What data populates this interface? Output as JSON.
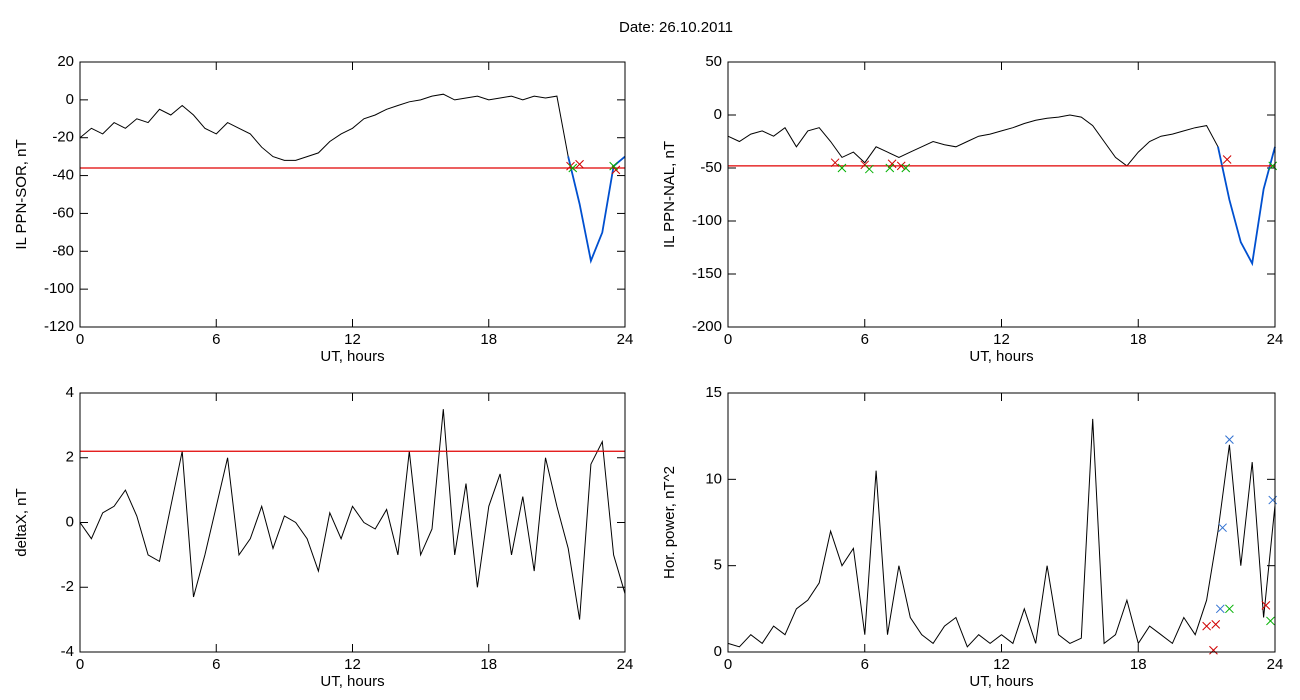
{
  "header": {
    "title": "Date:  26.10.2011"
  },
  "chart_data": [
    {
      "type": "line",
      "xlabel": "UT, hours",
      "ylabel": "IL PPN-SOR, nT",
      "x": [
        0,
        0.5,
        1,
        1.5,
        2,
        2.5,
        3,
        3.5,
        4,
        4.5,
        5,
        5.5,
        6,
        6.5,
        7,
        7.5,
        8,
        8.5,
        9,
        9.5,
        10,
        10.5,
        11,
        11.5,
        12,
        12.5,
        13,
        13.5,
        14,
        14.5,
        15,
        15.5,
        16,
        16.5,
        17,
        17.5,
        18,
        18.5,
        19,
        19.5,
        20,
        20.5,
        21,
        21.5,
        22,
        22.5,
        23,
        23.5,
        24
      ],
      "series": [
        {
          "color": "#000000",
          "values": [
            -20,
            -15,
            -18,
            -12,
            -15,
            -10,
            -12,
            -5,
            -8,
            -3,
            -8,
            -15,
            -18,
            -12,
            -15,
            -18,
            -25,
            -30,
            -32,
            -32,
            -30,
            -28,
            -22,
            -18,
            -15,
            -10,
            -8,
            -5,
            -3,
            -1,
            0,
            2,
            3,
            0,
            1,
            2,
            0,
            1,
            2,
            0,
            2,
            1,
            2,
            -30,
            -55,
            -85,
            -70,
            -35,
            -30
          ]
        },
        {
          "color": "#0050d0",
          "values": [
            null,
            null,
            null,
            null,
            null,
            null,
            null,
            null,
            null,
            null,
            null,
            null,
            null,
            null,
            null,
            null,
            null,
            null,
            null,
            null,
            null,
            null,
            null,
            null,
            null,
            null,
            null,
            null,
            null,
            null,
            null,
            null,
            null,
            null,
            null,
            null,
            null,
            null,
            null,
            null,
            null,
            null,
            null,
            -30,
            -55,
            -85,
            -70,
            -35,
            -30
          ]
        }
      ],
      "markers": [
        {
          "color": "#d00000",
          "x": [
            21.6,
            22,
            23.6
          ],
          "values": [
            -35,
            -34,
            -37
          ]
        },
        {
          "color": "#00b000",
          "x": [
            21.7,
            23.5
          ],
          "values": [
            -36,
            -35
          ]
        }
      ],
      "threshold": -36,
      "threshold_color": "#e00000",
      "xlim": [
        0,
        24
      ],
      "xticks": [
        0,
        6,
        12,
        18,
        24
      ],
      "ylim": [
        -120,
        20
      ],
      "yticks": [
        -120,
        -100,
        -80,
        -60,
        -40,
        -20,
        0,
        20
      ]
    },
    {
      "type": "line",
      "xlabel": "UT, hours",
      "ylabel": "IL PPN-NAL, nT",
      "x": [
        0,
        0.5,
        1,
        1.5,
        2,
        2.5,
        3,
        3.5,
        4,
        4.5,
        5,
        5.5,
        6,
        6.5,
        7,
        7.5,
        8,
        8.5,
        9,
        9.5,
        10,
        10.5,
        11,
        11.5,
        12,
        12.5,
        13,
        13.5,
        14,
        14.5,
        15,
        15.5,
        16,
        16.5,
        17,
        17.5,
        18,
        18.5,
        19,
        19.5,
        20,
        20.5,
        21,
        21.5,
        22,
        22.5,
        23,
        23.5,
        24
      ],
      "series": [
        {
          "color": "#000000",
          "values": [
            -20,
            -25,
            -18,
            -15,
            -20,
            -12,
            -30,
            -15,
            -12,
            -25,
            -40,
            -35,
            -45,
            -30,
            -35,
            -40,
            -35,
            -30,
            -25,
            -28,
            -30,
            -25,
            -20,
            -18,
            -15,
            -12,
            -8,
            -5,
            -3,
            -2,
            0,
            -2,
            -10,
            -25,
            -40,
            -48,
            -35,
            -25,
            -20,
            -18,
            -15,
            -12,
            -10,
            -30,
            -80,
            -120,
            -140,
            -70,
            -30
          ]
        },
        {
          "color": "#0050d0",
          "values": [
            null,
            null,
            null,
            null,
            null,
            null,
            null,
            null,
            null,
            null,
            null,
            null,
            null,
            null,
            null,
            null,
            null,
            null,
            null,
            null,
            null,
            null,
            null,
            null,
            null,
            null,
            null,
            null,
            null,
            null,
            null,
            null,
            null,
            null,
            null,
            null,
            null,
            null,
            null,
            null,
            null,
            null,
            null,
            -30,
            -80,
            -120,
            -140,
            -70,
            -30
          ]
        }
      ],
      "markers": [
        {
          "color": "#d00000",
          "x": [
            4.7,
            6,
            7.2,
            7.6,
            21.9
          ],
          "values": [
            -45,
            -47,
            -46,
            -48,
            -42
          ]
        },
        {
          "color": "#00b000",
          "x": [
            5,
            6.2,
            7.1,
            7.8,
            23.9
          ],
          "values": [
            -50,
            -51,
            -50,
            -50,
            -48
          ]
        }
      ],
      "threshold": -48,
      "threshold_color": "#e00000",
      "xlim": [
        0,
        24
      ],
      "xticks": [
        0,
        6,
        12,
        18,
        24
      ],
      "ylim": [
        -200,
        50
      ],
      "yticks": [
        -200,
        -150,
        -100,
        -50,
        0,
        50
      ]
    },
    {
      "type": "line",
      "xlabel": "UT, hours",
      "ylabel": "deltaX, nT",
      "x": [
        0,
        0.5,
        1,
        1.5,
        2,
        2.5,
        3,
        3.5,
        4,
        4.5,
        5,
        5.5,
        6,
        6.5,
        7,
        7.5,
        8,
        8.5,
        9,
        9.5,
        10,
        10.5,
        11,
        11.5,
        12,
        12.5,
        13,
        13.5,
        14,
        14.5,
        15,
        15.5,
        16,
        16.5,
        17,
        17.5,
        18,
        18.5,
        19,
        19.5,
        20,
        20.5,
        21,
        21.5,
        22,
        22.5,
        23,
        23.5,
        24
      ],
      "series": [
        {
          "color": "#000000",
          "values": [
            0,
            -0.5,
            0.3,
            0.5,
            1,
            0.2,
            -1,
            -1.2,
            0.5,
            2.2,
            -2.3,
            -1,
            0.5,
            2,
            -1,
            -0.5,
            0.5,
            -0.8,
            0.2,
            0,
            -0.5,
            -1.5,
            0.3,
            -0.5,
            0.5,
            0,
            -0.2,
            0.4,
            -1,
            2.2,
            -1,
            -0.2,
            3.5,
            -1,
            1.2,
            -2,
            0.5,
            1.5,
            -1,
            0.8,
            -1.5,
            2,
            0.5,
            -0.8,
            -3,
            1.8,
            2.5,
            -1,
            -2.2
          ]
        }
      ],
      "markers": [],
      "threshold": 2.2,
      "threshold_color": "#e00000",
      "xlim": [
        0,
        24
      ],
      "xticks": [
        0,
        6,
        12,
        18,
        24
      ],
      "ylim": [
        -4,
        4
      ],
      "yticks": [
        -4,
        -2,
        0,
        2,
        4
      ]
    },
    {
      "type": "line",
      "xlabel": "UT, hours",
      "ylabel": "Hor. power, nT^2",
      "x": [
        0,
        0.5,
        1,
        1.5,
        2,
        2.5,
        3,
        3.5,
        4,
        4.5,
        5,
        5.5,
        6,
        6.5,
        7,
        7.5,
        8,
        8.5,
        9,
        9.5,
        10,
        10.5,
        11,
        11.5,
        12,
        12.5,
        13,
        13.5,
        14,
        14.5,
        15,
        15.5,
        16,
        16.5,
        17,
        17.5,
        18,
        18.5,
        19,
        19.5,
        20,
        20.5,
        21,
        21.5,
        22,
        22.5,
        23,
        23.5,
        24
      ],
      "series": [
        {
          "color": "#000000",
          "values": [
            0.5,
            0.3,
            1,
            0.5,
            1.5,
            1,
            2.5,
            3,
            4,
            7,
            5,
            6,
            1,
            10.5,
            1,
            5,
            2,
            1,
            0.5,
            1.5,
            2,
            0.3,
            1,
            0.5,
            1,
            0.5,
            2.5,
            0.5,
            5,
            1,
            0.5,
            0.8,
            13.5,
            0.5,
            1,
            3,
            0.5,
            1.5,
            1,
            0.5,
            2,
            1,
            3,
            7,
            12,
            5,
            11,
            2,
            8.5
          ]
        }
      ],
      "markers": [
        {
          "color": "#3070d0",
          "x": [
            21.6,
            21.7,
            22,
            23.9
          ],
          "values": [
            2.5,
            7.2,
            12.3,
            8.8
          ]
        },
        {
          "color": "#d00000",
          "x": [
            21,
            21.3,
            21.4,
            23.6
          ],
          "values": [
            1.5,
            0.1,
            1.6,
            2.7
          ]
        },
        {
          "color": "#00b000",
          "x": [
            22,
            23.8
          ],
          "values": [
            2.5,
            1.8
          ]
        }
      ],
      "xlim": [
        0,
        24
      ],
      "xticks": [
        0,
        6,
        12,
        18,
        24
      ],
      "ylim": [
        0,
        15
      ],
      "yticks": [
        0,
        5,
        10,
        15
      ]
    }
  ]
}
